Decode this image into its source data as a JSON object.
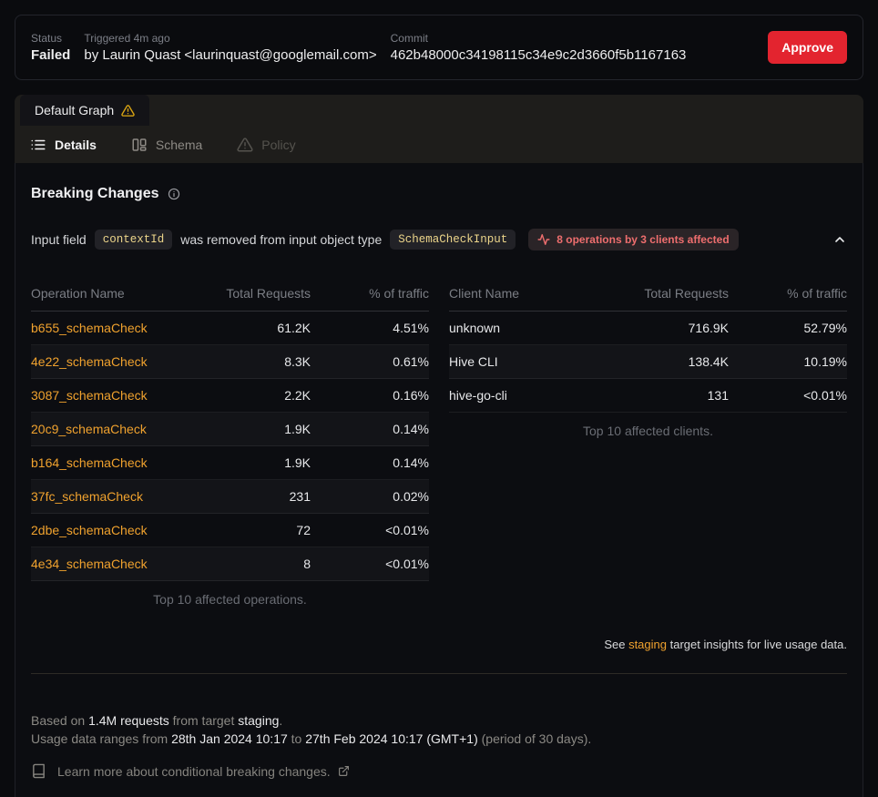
{
  "header": {
    "status_label": "Status",
    "status_value": "Failed",
    "triggered_label": "Triggered 4m ago",
    "triggered_value": "by Laurin Quast <laurinquast@googlemail.com>",
    "commit_label": "Commit",
    "commit_value": "462b48000c34198115c34e9c2d3660f5b1167163",
    "approve_label": "Approve"
  },
  "tabs": {
    "graph_label": "Default Graph",
    "graph_status_icon": "warning-triangle-icon",
    "views": [
      {
        "label": "Details",
        "icon": "list-icon",
        "state": "active"
      },
      {
        "label": "Schema",
        "icon": "schema-icon",
        "state": "inactive"
      },
      {
        "label": "Policy",
        "icon": "warning-triangle-icon",
        "state": "disabled"
      }
    ]
  },
  "bc": {
    "title": "Breaking Changes",
    "title_icon": "info-icon",
    "change": {
      "prefix": "Input field",
      "field": "contextId",
      "middle": "was removed from input object type",
      "type": "SchemaCheckInput",
      "badge": "8 operations by 3 clients affected",
      "badge_icon": "activity-pulse-icon",
      "collapse_icon": "chevron-up-icon"
    },
    "operations_table": {
      "columns": [
        "Operation Name",
        "Total Requests",
        "% of traffic"
      ],
      "rows": [
        {
          "name": "b655_schemaCheck",
          "requests": "61.2K",
          "traffic": "4.51%"
        },
        {
          "name": "4e22_schemaCheck",
          "requests": "8.3K",
          "traffic": "0.61%"
        },
        {
          "name": "3087_schemaCheck",
          "requests": "2.2K",
          "traffic": "0.16%"
        },
        {
          "name": "20c9_schemaCheck",
          "requests": "1.9K",
          "traffic": "0.14%"
        },
        {
          "name": "b164_schemaCheck",
          "requests": "1.9K",
          "traffic": "0.14%"
        },
        {
          "name": "37fc_schemaCheck",
          "requests": "231",
          "traffic": "0.02%"
        },
        {
          "name": "2dbe_schemaCheck",
          "requests": "72",
          "traffic": "<0.01%"
        },
        {
          "name": "4e34_schemaCheck",
          "requests": "8",
          "traffic": "<0.01%"
        }
      ],
      "caption": "Top 10 affected operations."
    },
    "clients_table": {
      "columns": [
        "Client Name",
        "Total Requests",
        "% of traffic"
      ],
      "rows": [
        {
          "name": "unknown",
          "requests": "716.9K",
          "traffic": "52.79%"
        },
        {
          "name": "Hive CLI",
          "requests": "138.4K",
          "traffic": "10.19%"
        },
        {
          "name": "hive-go-cli",
          "requests": "131",
          "traffic": "<0.01%"
        }
      ],
      "caption": "Top 10 affected clients."
    },
    "note": {
      "pre": "See ",
      "link": "staging",
      "post": " target insights for live usage data."
    }
  },
  "footer": {
    "based_on": {
      "pre": "Based on ",
      "requests": "1.4M requests",
      "mid": " from target ",
      "target": "staging",
      "post": "."
    },
    "range": {
      "pre": "Usage data ranges from ",
      "from": "28th Jan 2024 10:17",
      "sep": " to ",
      "to": "27th Feb 2024 10:17 (GMT+1)",
      "post": " (period of 30 days)."
    },
    "learn_more": "Learn more about conditional breaking changes.",
    "learn_more_icons": [
      "book-icon",
      "external-link-icon"
    ]
  },
  "colors": {
    "approve_red": "#e3242f",
    "affected_red": "#ee6e6e",
    "link_orange": "#f0a22e",
    "code_yellow": "#ecd58a",
    "warning_yellow": "#d9a412"
  }
}
